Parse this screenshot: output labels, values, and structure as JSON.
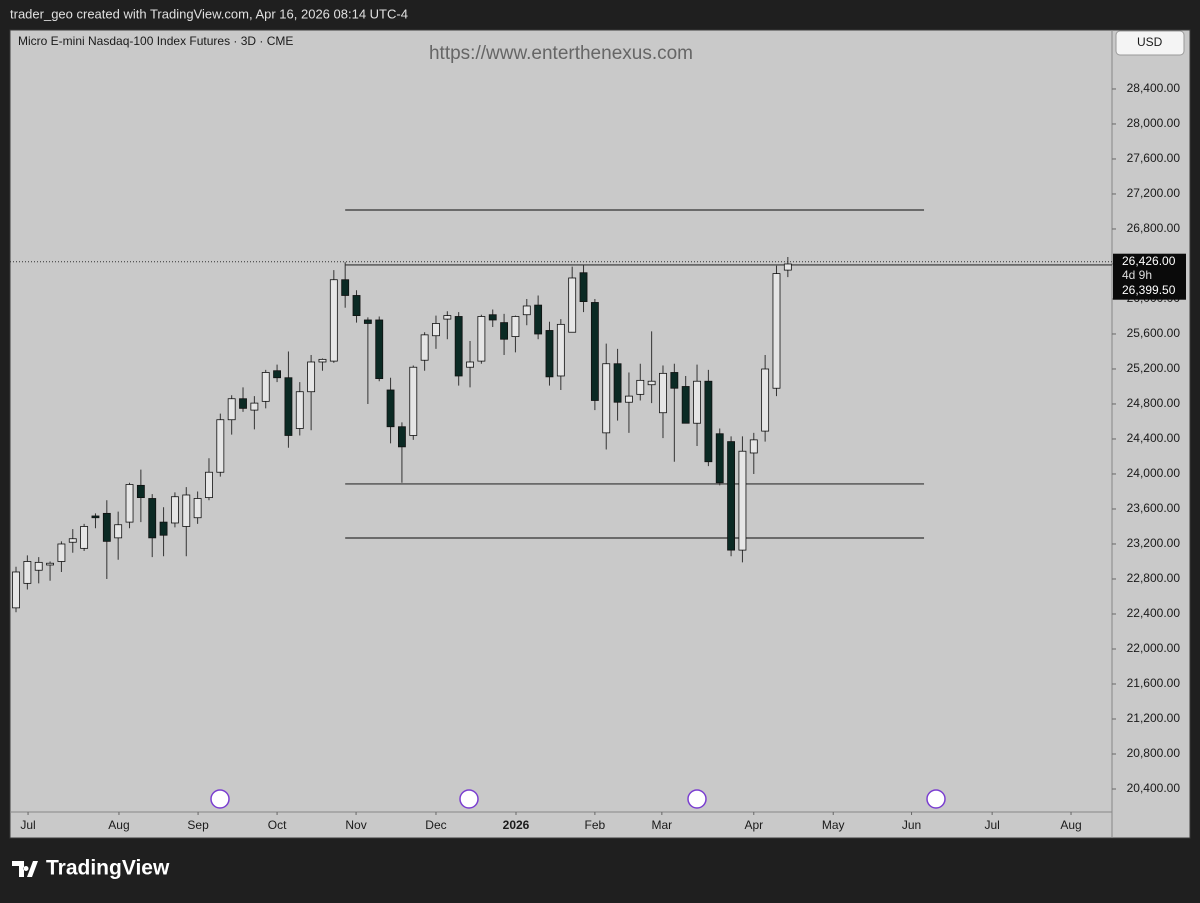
{
  "header": {
    "credit": "trader_geo created with TradingView.com, Apr 16, 2026 08:14 UTC-4"
  },
  "footer": {
    "brand": "TradingView"
  },
  "chart_data": {
    "type": "candlestick",
    "title": "Micro E-mini Nasdaq-100 Index Futures · 3D · CME",
    "watermark": "https://www.enterthenexus.com",
    "currency": "USD",
    "up_color": "#e6e6e6",
    "down_color": "#0b2a24",
    "open": [
      22470,
      22750,
      22900,
      22960,
      23000,
      23220,
      23150,
      23520,
      23550,
      23270,
      23450,
      23870,
      23720,
      23450,
      23440,
      23400,
      23500,
      23730,
      24020,
      24620,
      24860,
      24730,
      24830,
      25180,
      25100,
      24520,
      24940,
      25280,
      25290,
      26220,
      26040,
      25760,
      25760,
      24960,
      24540,
      24440,
      25300,
      25580,
      25770,
      25800,
      25220,
      25290,
      25820,
      25730,
      25570,
      25820,
      25930,
      25640,
      25120,
      25620,
      26300,
      25960,
      24470,
      25260,
      24820,
      24910,
      25020,
      24700,
      25160,
      25000,
      24580,
      25060,
      24460,
      24370,
      23130,
      24240,
      24490,
      24980,
      26330
    ],
    "high": [
      22940,
      23070,
      23050,
      23000,
      23230,
      23370,
      23430,
      23550,
      23700,
      23570,
      23900,
      24050,
      23770,
      23620,
      23790,
      23850,
      23800,
      24180,
      24690,
      24900,
      24990,
      24890,
      25190,
      25250,
      25400,
      25050,
      25360,
      25320,
      26330,
      26420,
      26100,
      25790,
      25800,
      25100,
      24590,
      25240,
      25620,
      25810,
      25860,
      25850,
      25520,
      25820,
      25880,
      25830,
      25810,
      26000,
      26040,
      25740,
      25770,
      26370,
      26390,
      26000,
      25490,
      25430,
      25160,
      25260,
      25630,
      25240,
      25260,
      25120,
      25250,
      25190,
      24520,
      24430,
      24430,
      24470,
      25360,
      26380,
      26480
    ],
    "low": [
      22420,
      22680,
      22750,
      22780,
      22880,
      23100,
      23120,
      23380,
      22800,
      23020,
      23380,
      23450,
      23050,
      23060,
      23390,
      23060,
      23430,
      23700,
      23970,
      24450,
      24710,
      24510,
      24750,
      25050,
      24300,
      24440,
      24500,
      25180,
      25270,
      25900,
      25730,
      24800,
      25060,
      24350,
      23900,
      24390,
      25180,
      25430,
      25540,
      25010,
      24990,
      25260,
      25680,
      25360,
      25390,
      25700,
      25540,
      25010,
      24960,
      25630,
      25850,
      24730,
      24280,
      24610,
      24470,
      24840,
      24810,
      24410,
      24140,
      24580,
      24320,
      24090,
      23870,
      23060,
      22990,
      24000,
      24370,
      24890,
      26250
    ],
    "close": [
      22880,
      23000,
      22990,
      22980,
      23200,
      23260,
      23400,
      23500,
      23230,
      23420,
      23880,
      23730,
      23270,
      23300,
      23740,
      23760,
      23720,
      24020,
      24620,
      24860,
      24750,
      24810,
      25160,
      25100,
      24440,
      24940,
      25280,
      25310,
      26220,
      26040,
      25810,
      25720,
      25090,
      24540,
      24310,
      25220,
      25590,
      25720,
      25810,
      25120,
      25280,
      25800,
      25760,
      25540,
      25800,
      25920,
      25600,
      25110,
      25710,
      26240,
      25970,
      24840,
      25260,
      24820,
      24890,
      25070,
      25060,
      25150,
      24980,
      24580,
      25060,
      24140,
      23900,
      23130,
      24260,
      24390,
      25200,
      26290,
      26400
    ],
    "xlim": [
      -0.53,
      96.56
    ],
    "xticks": [
      {
        "value": 1.06,
        "label": "Jul"
      },
      {
        "value": 9.07,
        "label": "Aug"
      },
      {
        "value": 16.04,
        "label": "Sep"
      },
      {
        "value": 23.0,
        "label": "Oct"
      },
      {
        "value": 29.96,
        "label": "Nov"
      },
      {
        "value": 37.0,
        "label": "Dec"
      },
      {
        "value": 44.05,
        "label": "2026"
      },
      {
        "value": 51.0,
        "label": "Feb"
      },
      {
        "value": 56.9,
        "label": "Mar"
      },
      {
        "value": 65.0,
        "label": "Apr"
      },
      {
        "value": 72.0,
        "label": "May"
      },
      {
        "value": 78.9,
        "label": "Jun"
      },
      {
        "value": 86.0,
        "label": "Jul"
      },
      {
        "value": 92.95,
        "label": "Aug"
      }
    ],
    "ylim": [
      20137,
      29074
    ],
    "yticks": [
      {
        "value": 20400,
        "label": "20,400.00"
      },
      {
        "value": 20800,
        "label": "20,800.00"
      },
      {
        "value": 21200,
        "label": "21,200.00"
      },
      {
        "value": 21600,
        "label": "21,600.00"
      },
      {
        "value": 22000,
        "label": "22,000.00"
      },
      {
        "value": 22400,
        "label": "22,400.00"
      },
      {
        "value": 22800,
        "label": "22,800.00"
      },
      {
        "value": 23200,
        "label": "23,200.00"
      },
      {
        "value": 23600,
        "label": "23,600.00"
      },
      {
        "value": 24000,
        "label": "24,000.00"
      },
      {
        "value": 24400,
        "label": "24,400.00"
      },
      {
        "value": 24800,
        "label": "24,800.00"
      },
      {
        "value": 25200,
        "label": "25,200.00"
      },
      {
        "value": 25600,
        "label": "25,600.00"
      },
      {
        "value": 26000,
        "label": "26,000.00"
      },
      {
        "value": 26400,
        "label": "26,400.00"
      },
      {
        "value": 26800,
        "label": "26,800.00"
      },
      {
        "value": 27200,
        "label": "27,200.00"
      },
      {
        "value": 27600,
        "label": "27,600.00"
      },
      {
        "value": 28000,
        "label": "28,000.00"
      },
      {
        "value": 28400,
        "label": "28,400.00"
      }
    ],
    "levels": [
      {
        "value": 27017,
        "start": 29.0,
        "end": 80.0
      },
      {
        "value": 26389,
        "start": 29.0,
        "end": 96.56
      },
      {
        "value": 23886,
        "start": 29.0,
        "end": 80.0
      },
      {
        "value": 23268,
        "start": 29.0,
        "end": 80.0
      }
    ],
    "last_price": {
      "value": 26426,
      "label": "26,426.00"
    },
    "countdown": "4d 9h",
    "close_label": {
      "value": 26399.5,
      "label": "26,399.50"
    }
  }
}
